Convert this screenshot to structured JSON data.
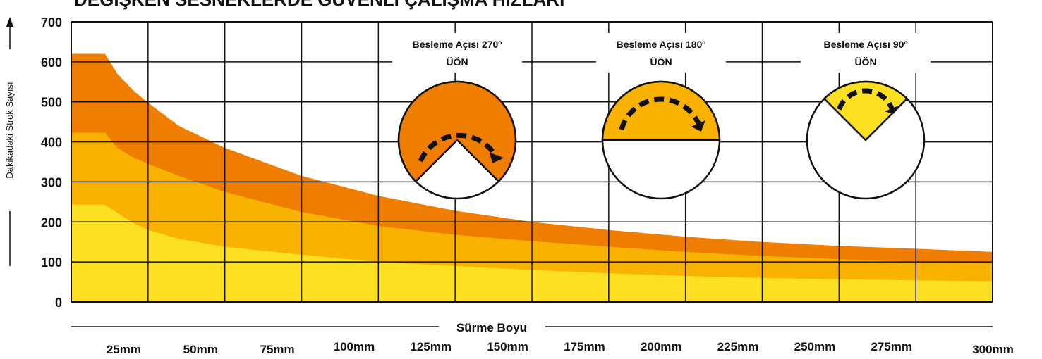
{
  "chart_data": {
    "type": "area",
    "title": "DEĞİŞKEN SESNEKLERDE GÜVENLİ ÇALIŞMA HIZLARI",
    "xlabel": "Sürme Boyu",
    "ylabel": "Dakikadaki Strok Sayısı",
    "ylim": [
      0,
      700
    ],
    "xlim": [
      0,
      300
    ],
    "y_ticks": [
      "0",
      "100",
      "200",
      "300",
      "400",
      "500",
      "600",
      "700"
    ],
    "x_ticks": [
      "25mm",
      "50mm",
      "75mm",
      "100mm",
      "125mm",
      "150mm",
      "175mm",
      "200mm",
      "225mm",
      "250mm",
      "275mm",
      "300mm"
    ],
    "grid": true,
    "x": [
      0,
      11,
      15,
      20,
      25,
      35,
      50,
      75,
      100,
      125,
      150,
      175,
      200,
      225,
      250,
      275,
      300
    ],
    "series": [
      {
        "name": "Besleme Açısı 270º",
        "color": "#ee7d00",
        "values": [
          620,
          620,
          570,
          530,
          498,
          440,
          385,
          315,
          265,
          228,
          200,
          180,
          163,
          150,
          140,
          133,
          125
        ]
      },
      {
        "name": "Besleme Açısı 180º",
        "color": "#f9b200",
        "values": [
          423,
          423,
          385,
          362,
          345,
          315,
          275,
          225,
          190,
          168,
          152,
          138,
          125,
          115,
          107,
          100,
          98
        ]
      },
      {
        "name": "Besleme Açısı 90º",
        "color": "#fde021",
        "values": [
          243,
          243,
          223,
          198,
          180,
          158,
          138,
          118,
          100,
          90,
          80,
          72,
          65,
          60,
          57,
          54,
          52
        ]
      }
    ],
    "annotations": [
      {
        "title": "Besleme Açısı 270º",
        "label": "ÜÖN",
        "angle": 270
      },
      {
        "title": "Besleme Açısı 180º",
        "label": "ÜÖN",
        "angle": 180
      },
      {
        "title": "Besleme Açısı 90º",
        "label": "ÜÖN",
        "angle": 90
      }
    ]
  }
}
